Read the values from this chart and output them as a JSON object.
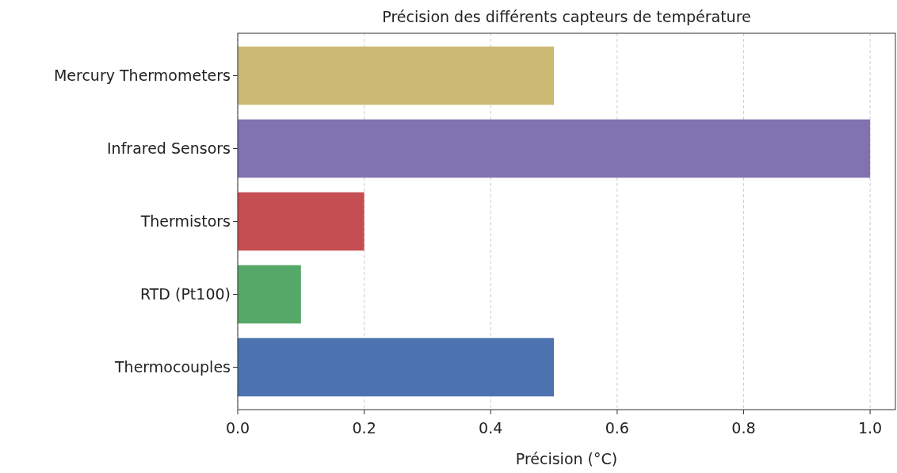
{
  "chart_data": {
    "type": "bar",
    "orientation": "horizontal",
    "title": "Précision des différents capteurs de température",
    "xlabel": "Précision (°C)",
    "categories": [
      "Mercury Thermometers",
      "Infrared Sensors",
      "Thermistors",
      "RTD (Pt100)",
      "Thermocouples"
    ],
    "values": [
      0.5,
      1.0,
      0.2,
      0.1,
      0.5
    ],
    "colors": [
      "#ccb974",
      "#8172b2",
      "#c44e52",
      "#55a868",
      "#4c72b0"
    ],
    "xlim": [
      0,
      1.04
    ],
    "xticks": [
      {
        "value": 0,
        "label": "0.0"
      },
      0.2,
      0.4,
      0.6,
      0.8,
      {
        "value": 1,
        "label": "1.0"
      }
    ],
    "grid": "x"
  }
}
